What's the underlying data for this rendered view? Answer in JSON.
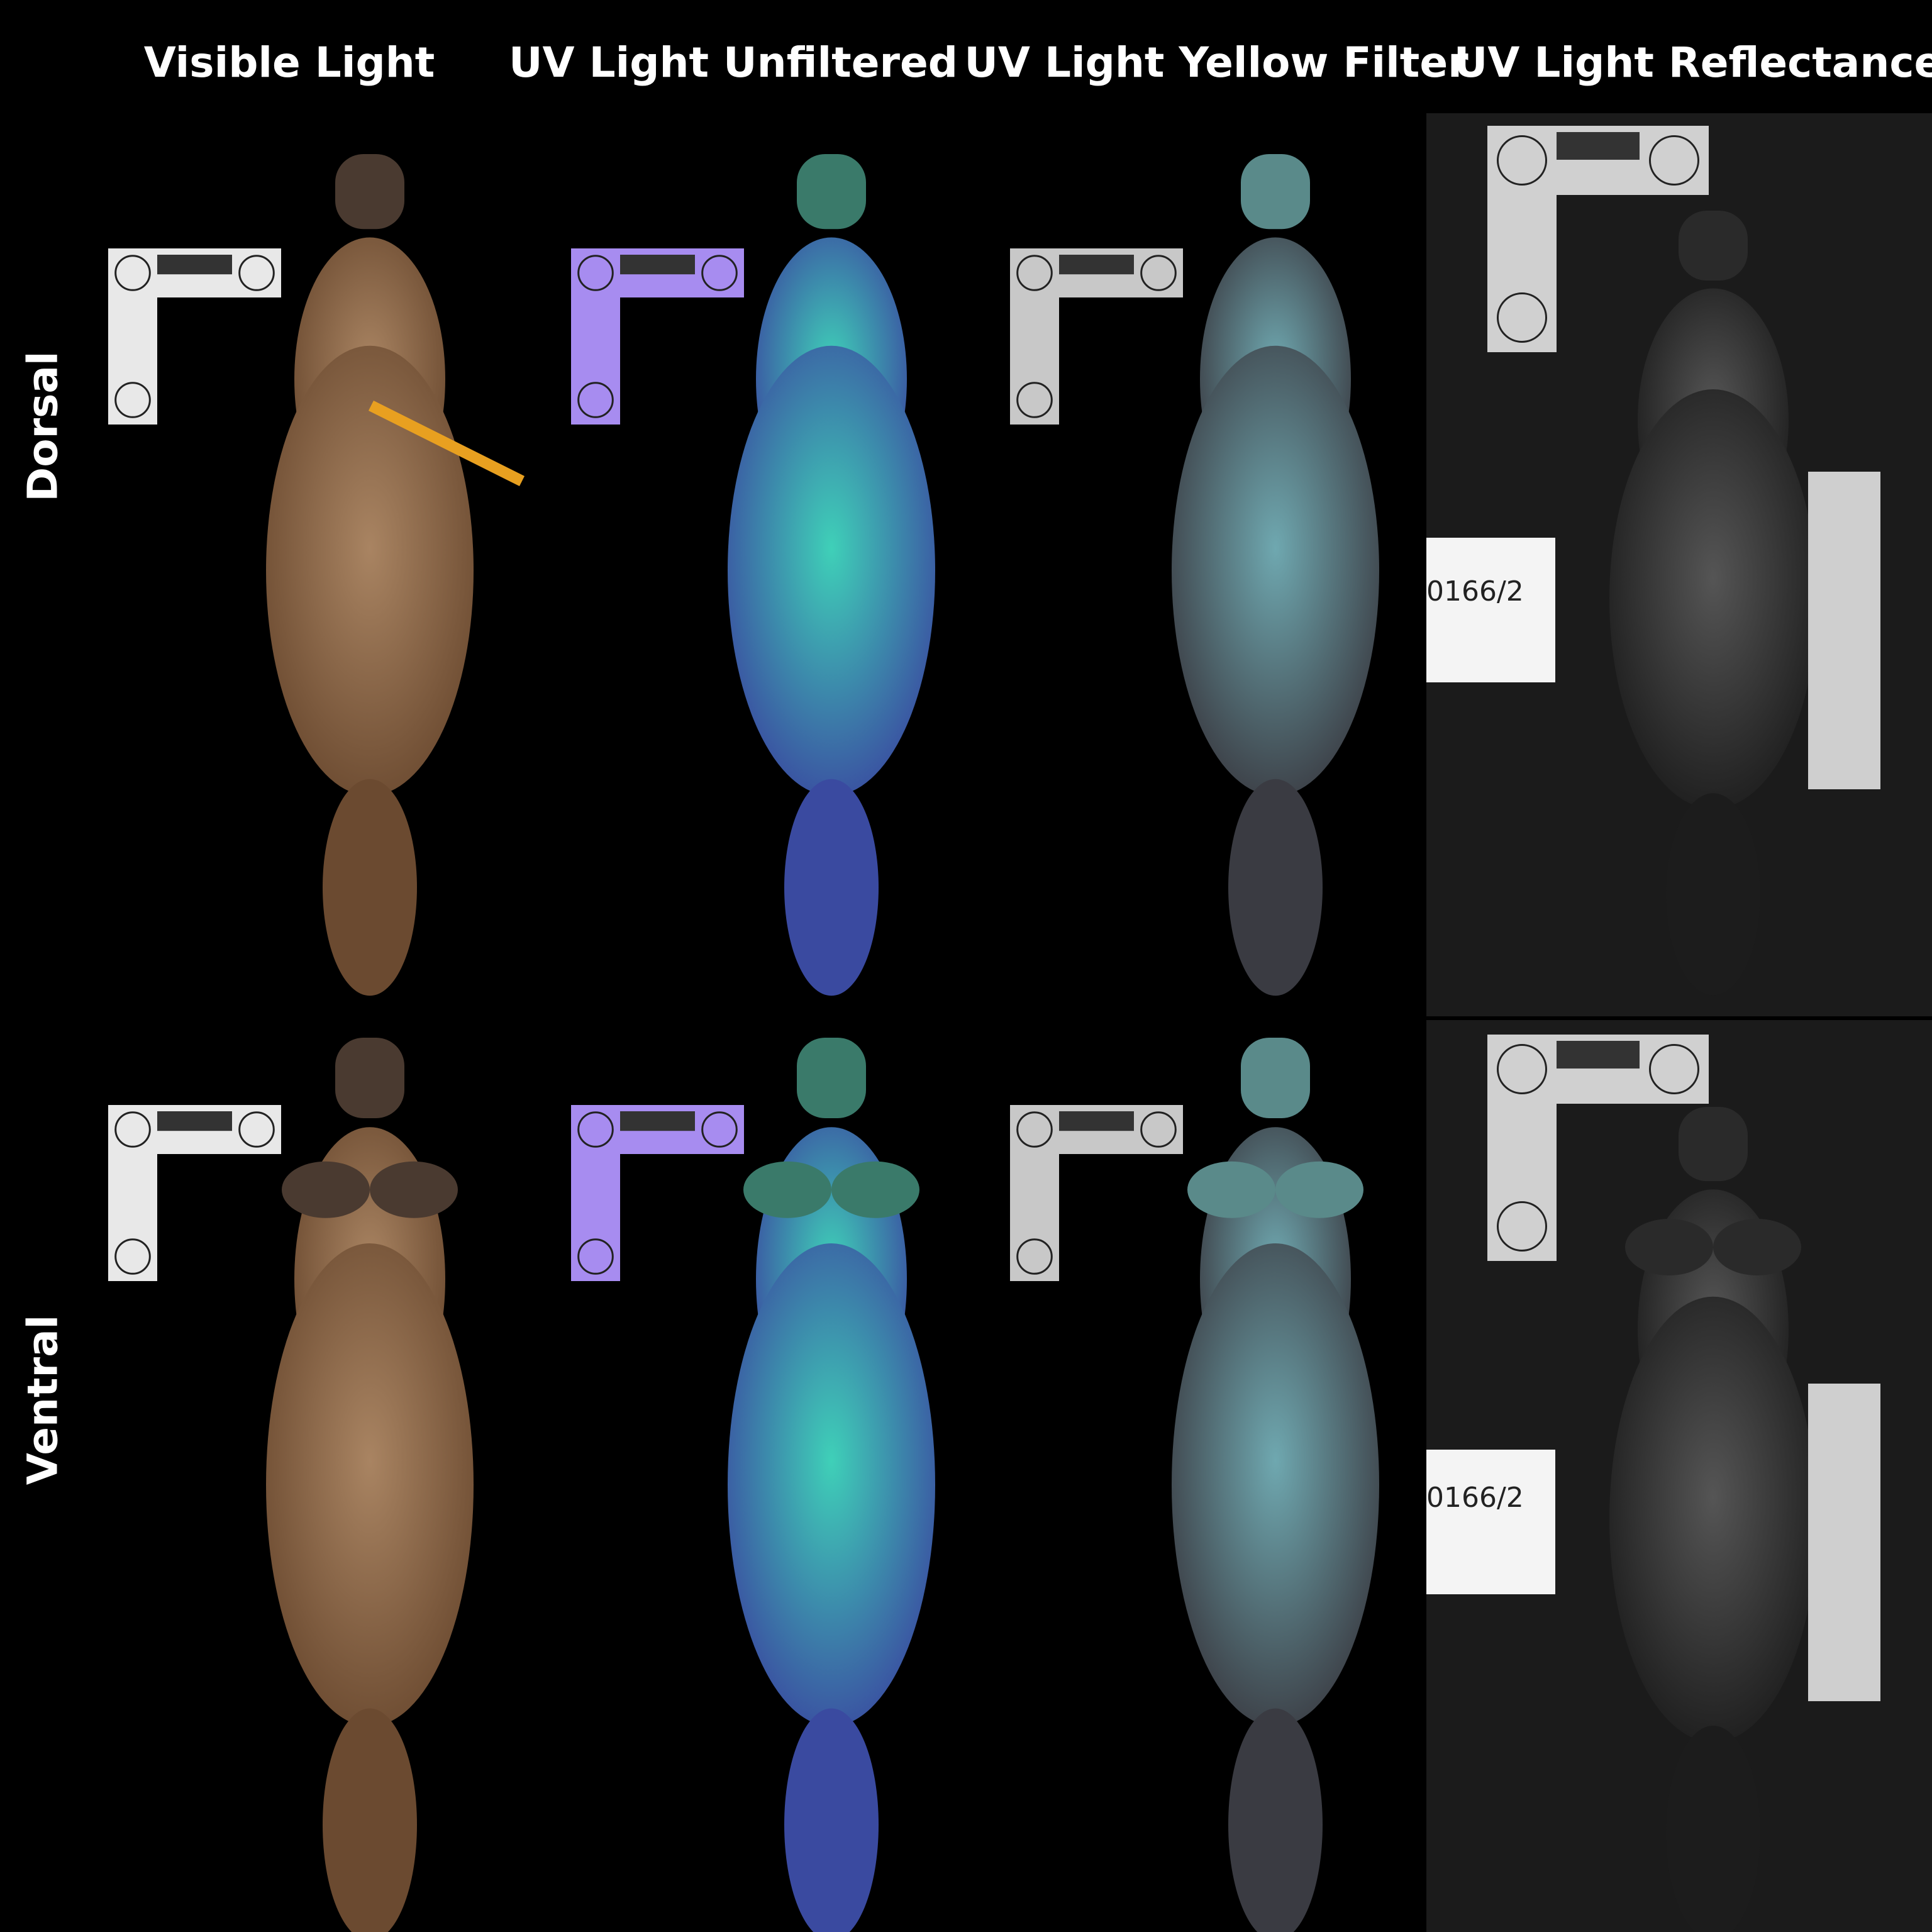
{
  "columns": [
    {
      "title": "Visible Light",
      "fur": "#6b4a30",
      "fur_light": "#a98462",
      "bill": "#4a3a30",
      "scale_tint": "#e8e8e8"
    },
    {
      "title": "UV Light Unfiltered",
      "fur": "#3a4aa0",
      "fur_light": "#3fd0b8",
      "bill": "#3a7a6a",
      "scale_tint": "#a78cf0"
    },
    {
      "title": "UV Light Yellow Filter",
      "fur": "#3a3b42",
      "fur_light": "#6fa8b0",
      "bill": "#5a8a8a",
      "scale_tint": "#c8c8c8"
    },
    {
      "title": "UV Light Reflectance",
      "fur": "#1c1c1c",
      "fur_light": "#555555",
      "bill": "#2a2a2a",
      "scale_tint": "#d0d0d0"
    }
  ],
  "rows": [
    {
      "label": "Dorsal"
    },
    {
      "label": "Ventral"
    }
  ],
  "specimen_label": "0166/2"
}
